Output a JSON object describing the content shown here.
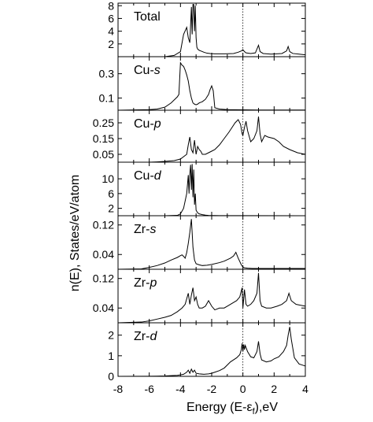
{
  "chart_data": {
    "type": "line",
    "xlabel": "Energy (E-ε",
    "xlabel_sub": "f",
    "xlabel_end": "),eV",
    "ylabel": "n(E), States/eV/atom",
    "xlim": [
      -8,
      4
    ],
    "xticks": [
      -8,
      -6,
      -4,
      -2,
      0,
      2,
      4
    ],
    "fermi_line_x": 0,
    "panels": [
      {
        "label": "Total",
        "label_italic": "",
        "ylim": [
          0,
          8.4
        ],
        "yticks": [
          {
            "v": 2,
            "t": "2"
          },
          {
            "v": 4,
            "t": "4"
          },
          {
            "v": 6,
            "t": "6"
          },
          {
            "v": 8,
            "t": "8"
          }
        ],
        "x": [
          -8,
          -6,
          -5,
          -4.4,
          -4.0,
          -3.8,
          -3.6,
          -3.5,
          -3.4,
          -3.3,
          -3.25,
          -3.2,
          -3.15,
          -3.1,
          -3.05,
          -3.0,
          -2.95,
          -2.9,
          -2.8,
          -2.7,
          -2.5,
          -2.3,
          -2.1,
          -1.8,
          -1.2,
          -0.6,
          -0.3,
          -0.1,
          0,
          0.1,
          0.2,
          0.5,
          0.8,
          0.9,
          1.0,
          1.1,
          1.3,
          1.8,
          2.5,
          2.8,
          2.9,
          3.0,
          3.2,
          3.6,
          4
        ],
        "y": [
          0,
          0,
          0,
          0.2,
          0.8,
          3.5,
          4.6,
          3.0,
          2.2,
          7.8,
          3.5,
          8.2,
          8.2,
          4.0,
          8.0,
          3.0,
          1.5,
          1.2,
          1.0,
          0.9,
          0.7,
          0.55,
          0.5,
          0.45,
          0.45,
          0.5,
          0.7,
          0.9,
          1.1,
          0.8,
          0.6,
          0.5,
          0.6,
          1.2,
          1.8,
          0.8,
          0.5,
          0.4,
          0.5,
          0.9,
          1.6,
          0.8,
          0.5,
          0.4,
          0.3
        ]
      },
      {
        "label": "Cu-",
        "label_italic": "s",
        "ylim": [
          0,
          0.44
        ],
        "yticks": [
          {
            "v": 0.1,
            "t": "0.1"
          },
          {
            "v": 0.3,
            "t": "0.3"
          }
        ],
        "x": [
          -8,
          -6,
          -5.5,
          -5,
          -4.6,
          -4.4,
          -4.2,
          -4.1,
          -4.0,
          -3.9,
          -3.8,
          -3.7,
          -3.6,
          -3.5,
          -3.4,
          -3.3,
          -3.2,
          -3.1,
          -3.0,
          -2.9,
          -2.8,
          -2.6,
          -2.4,
          -2.2,
          -2.1,
          -2.0,
          -1.9,
          -1.8,
          -1.5,
          -1.0,
          0,
          1,
          2,
          3,
          4
        ],
        "y": [
          0,
          0.005,
          0.01,
          0.025,
          0.06,
          0.085,
          0.11,
          0.13,
          0.39,
          0.37,
          0.36,
          0.33,
          0.29,
          0.24,
          0.16,
          0.1,
          0.06,
          0.05,
          0.045,
          0.05,
          0.06,
          0.07,
          0.09,
          0.13,
          0.17,
          0.2,
          0.16,
          0.02,
          0.01,
          0.005,
          0.003,
          0.002,
          0.002,
          0.002,
          0.002
        ]
      },
      {
        "label": "Cu-",
        "label_italic": "p",
        "ylim": [
          0,
          0.33
        ],
        "yticks": [
          {
            "v": 0.05,
            "t": "0.05"
          },
          {
            "v": 0.15,
            "t": "0.15"
          },
          {
            "v": 0.25,
            "t": "0.25"
          }
        ],
        "x": [
          -8,
          -6,
          -5.5,
          -5,
          -4.4,
          -4.0,
          -3.6,
          -3.5,
          -3.4,
          -3.3,
          -3.2,
          -3.1,
          -3.0,
          -2.9,
          -2.8,
          -2.7,
          -2.6,
          -2.4,
          -2.2,
          -2.0,
          -1.8,
          -1.5,
          -1.2,
          -0.9,
          -0.7,
          -0.5,
          -0.3,
          -0.15,
          -0.05,
          0,
          0.1,
          0.2,
          0.3,
          0.5,
          0.7,
          0.9,
          1.0,
          1.1,
          1.2,
          1.4,
          1.6,
          2.0,
          2.3,
          2.6,
          3.0,
          3.5,
          4
        ],
        "y": [
          0,
          0,
          0.002,
          0.005,
          0.01,
          0.02,
          0.05,
          0.11,
          0.16,
          0.08,
          0.06,
          0.14,
          0.05,
          0.1,
          0.08,
          0.07,
          0.05,
          0.05,
          0.06,
          0.07,
          0.08,
          0.11,
          0.15,
          0.19,
          0.22,
          0.25,
          0.27,
          0.24,
          0.18,
          0.17,
          0.22,
          0.26,
          0.2,
          0.13,
          0.15,
          0.2,
          0.29,
          0.18,
          0.13,
          0.17,
          0.16,
          0.15,
          0.13,
          0.1,
          0.08,
          0.06,
          0.05
        ]
      },
      {
        "label": "Cu-",
        "label_italic": "d",
        "ylim": [
          0,
          14.5
        ],
        "yticks": [
          {
            "v": 2,
            "t": "2"
          },
          {
            "v": 6,
            "t": "6"
          },
          {
            "v": 10,
            "t": "10"
          }
        ],
        "x": [
          -8,
          -5,
          -4.2,
          -4.0,
          -3.8,
          -3.6,
          -3.5,
          -3.45,
          -3.4,
          -3.35,
          -3.3,
          -3.25,
          -3.2,
          -3.15,
          -3.1,
          -3.05,
          -3.0,
          -2.9,
          -2.8,
          -2.7,
          -2.6,
          -2.4,
          -2.2,
          -1.5,
          0,
          4
        ],
        "y": [
          0,
          0,
          0.1,
          0.5,
          2.0,
          6.0,
          11.0,
          6.0,
          11.5,
          13.8,
          7.0,
          14.0,
          5.0,
          12.5,
          3.0,
          6.0,
          1.5,
          0.8,
          0.5,
          0.4,
          0.3,
          0.15,
          0.08,
          0.03,
          0.02,
          0.01
        ]
      },
      {
        "label": "Zr-",
        "label_italic": "s",
        "ylim": [
          0,
          0.145
        ],
        "yticks": [
          {
            "v": 0.04,
            "t": "0.04"
          },
          {
            "v": 0.12,
            "t": "0.12"
          }
        ],
        "x": [
          -8,
          -6.5,
          -6,
          -5.5,
          -5,
          -4.6,
          -4.2,
          -4.0,
          -3.9,
          -3.8,
          -3.7,
          -3.6,
          -3.5,
          -3.4,
          -3.3,
          -3.2,
          -3.1,
          -3.0,
          -2.8,
          -2.6,
          -2.3,
          -2.0,
          -1.5,
          -1.2,
          -1.0,
          -0.8,
          -0.6,
          -0.45,
          -0.3,
          -0.1,
          0,
          0.1,
          0.3,
          0.6,
          1.0,
          1.5,
          2,
          3,
          4
        ],
        "y": [
          0,
          0.001,
          0.005,
          0.01,
          0.017,
          0.025,
          0.032,
          0.037,
          0.039,
          0.035,
          0.03,
          0.045,
          0.07,
          0.1,
          0.136,
          0.06,
          0.025,
          0.015,
          0.012,
          0.01,
          0.011,
          0.013,
          0.018,
          0.022,
          0.026,
          0.03,
          0.036,
          0.046,
          0.03,
          0.012,
          0.006,
          0.004,
          0.003,
          0.002,
          0.002,
          0.002,
          0.002,
          0.002,
          0.002
        ]
      },
      {
        "label": "Zr-",
        "label_italic": "p",
        "ylim": [
          0,
          0.145
        ],
        "yticks": [
          {
            "v": 0.04,
            "t": "0.04"
          },
          {
            "v": 0.12,
            "t": "0.12"
          }
        ],
        "x": [
          -8,
          -6.5,
          -6,
          -5.5,
          -5,
          -4.6,
          -4.2,
          -3.9,
          -3.7,
          -3.6,
          -3.5,
          -3.4,
          -3.3,
          -3.2,
          -3.1,
          -3.0,
          -2.9,
          -2.8,
          -2.6,
          -2.4,
          -2.2,
          -2.0,
          -1.8,
          -1.5,
          -1.2,
          -1.0,
          -0.8,
          -0.6,
          -0.4,
          -0.2,
          -0.05,
          0,
          0.1,
          0.2,
          0.3,
          0.5,
          0.7,
          0.9,
          1.0,
          1.1,
          1.2,
          1.5,
          1.8,
          2.2,
          2.5,
          2.8,
          2.95,
          3.1,
          3.4,
          4
        ],
        "y": [
          0,
          0.002,
          0.005,
          0.01,
          0.015,
          0.02,
          0.03,
          0.04,
          0.05,
          0.065,
          0.08,
          0.05,
          0.075,
          0.095,
          0.06,
          0.07,
          0.05,
          0.04,
          0.04,
          0.045,
          0.06,
          0.045,
          0.035,
          0.04,
          0.04,
          0.045,
          0.05,
          0.055,
          0.06,
          0.07,
          0.095,
          0.04,
          0.09,
          0.05,
          0.045,
          0.05,
          0.06,
          0.08,
          0.135,
          0.06,
          0.045,
          0.04,
          0.04,
          0.045,
          0.05,
          0.06,
          0.08,
          0.06,
          0.05,
          0.045
        ]
      },
      {
        "label": "Zr-",
        "label_italic": "d",
        "ylim": [
          0,
          2.6
        ],
        "yticks": [
          {
            "v": 0,
            "t": "0"
          },
          {
            "v": 1,
            "t": "1"
          },
          {
            "v": 2,
            "t": "2"
          }
        ],
        "x": [
          -8,
          -6,
          -5.5,
          -5,
          -4.5,
          -4.2,
          -4.0,
          -3.8,
          -3.6,
          -3.5,
          -3.4,
          -3.3,
          -3.2,
          -3.1,
          -3.0,
          -2.8,
          -2.5,
          -2.2,
          -2.0,
          -1.8,
          -1.5,
          -1.2,
          -1.0,
          -0.8,
          -0.6,
          -0.4,
          -0.2,
          -0.1,
          -0.05,
          0,
          0.05,
          0.1,
          0.15,
          0.3,
          0.5,
          0.7,
          0.9,
          1.0,
          1.1,
          1.2,
          1.5,
          1.8,
          2.0,
          2.3,
          2.6,
          2.8,
          2.9,
          3.0,
          3.1,
          3.3,
          3.6,
          4
        ],
        "y": [
          0,
          0.005,
          0.01,
          0.02,
          0.04,
          0.05,
          0.07,
          0.1,
          0.2,
          0.3,
          0.15,
          0.35,
          0.2,
          0.3,
          0.15,
          0.12,
          0.1,
          0.12,
          0.15,
          0.2,
          0.28,
          0.4,
          0.55,
          0.7,
          0.8,
          0.9,
          1.05,
          1.3,
          1.6,
          1.2,
          1.55,
          1.3,
          1.5,
          1.2,
          0.95,
          0.9,
          1.2,
          1.7,
          1.1,
          0.8,
          0.7,
          0.75,
          0.85,
          0.95,
          1.2,
          1.5,
          2.0,
          2.4,
          1.8,
          0.9,
          0.6,
          0.5
        ]
      }
    ]
  }
}
